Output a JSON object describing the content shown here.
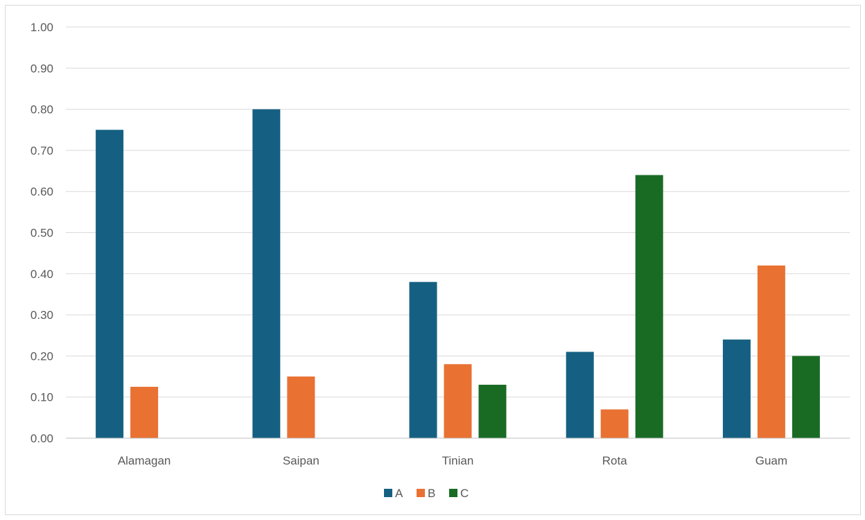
{
  "chart_data": {
    "type": "bar",
    "title": "",
    "xlabel": "",
    "ylabel": "",
    "categories": [
      "Alamagan",
      "Saipan",
      "Tinian",
      "Rota",
      "Guam"
    ],
    "series": [
      {
        "name": "A",
        "color": "#156082",
        "values": [
          0.75,
          0.8,
          0.38,
          0.21,
          0.24
        ]
      },
      {
        "name": "B",
        "color": "#E97132",
        "values": [
          0.125,
          0.15,
          0.18,
          0.07,
          0.42
        ]
      },
      {
        "name": "C",
        "color": "#196B24",
        "values": [
          0,
          0,
          0.13,
          0.64,
          0.2
        ]
      }
    ],
    "ylim": [
      0,
      1.0
    ],
    "yticks": [
      "0.00",
      "0.10",
      "0.20",
      "0.30",
      "0.40",
      "0.50",
      "0.60",
      "0.70",
      "0.80",
      "0.90",
      "1.00"
    ],
    "grid": true,
    "legend_position": "bottom"
  }
}
